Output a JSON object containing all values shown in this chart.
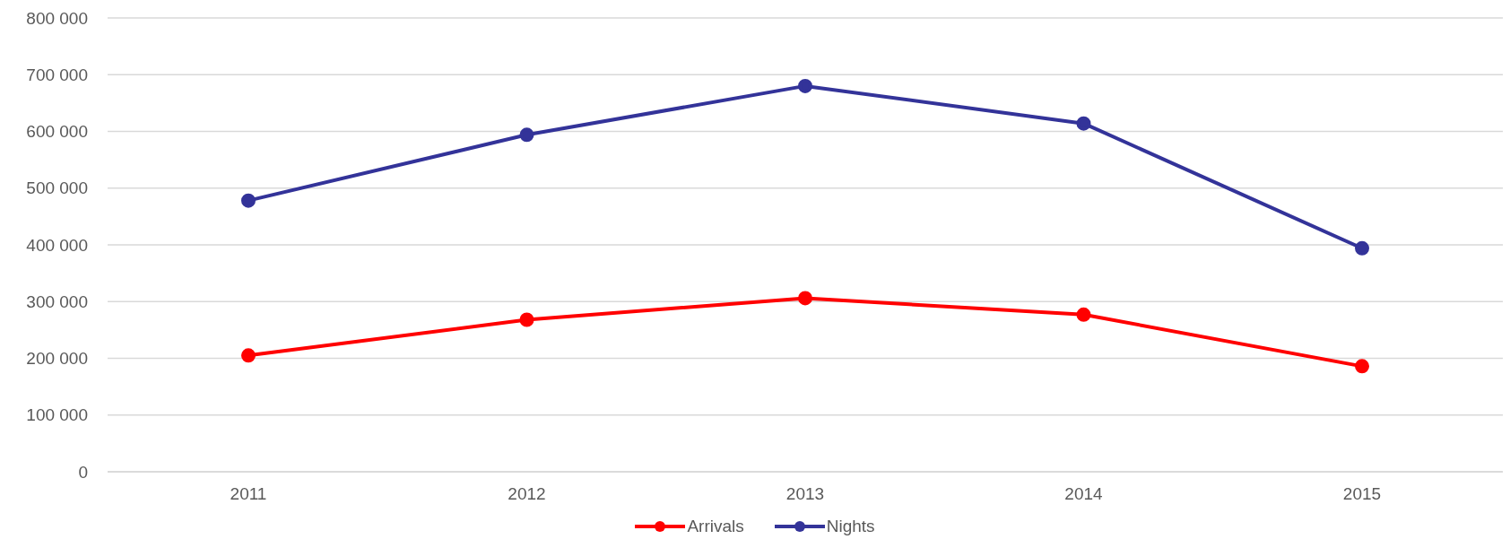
{
  "chart_data": {
    "type": "line",
    "categories": [
      "2011",
      "2012",
      "2013",
      "2014",
      "2015"
    ],
    "series": [
      {
        "name": "Arrivals",
        "color": "#ff0000",
        "values": [
          205000,
          268000,
          306000,
          277000,
          186000
        ]
      },
      {
        "name": "Nights",
        "color": "#333399",
        "values": [
          478000,
          594000,
          680000,
          614000,
          394000
        ]
      }
    ],
    "ylim": [
      0,
      800000
    ],
    "yticks": [
      {
        "value": 0,
        "label": "0"
      },
      {
        "value": 100000,
        "label": "100 000"
      },
      {
        "value": 200000,
        "label": "200 000"
      },
      {
        "value": 300000,
        "label": "300 000"
      },
      {
        "value": 400000,
        "label": "400 000"
      },
      {
        "value": 500000,
        "label": "500 000"
      },
      {
        "value": 600000,
        "label": "600 000"
      },
      {
        "value": 700000,
        "label": "700 000"
      },
      {
        "value": 800000,
        "label": "800 000"
      }
    ],
    "grid": "y",
    "legend": "bottom",
    "marker": "circle",
    "line_style": "solid"
  }
}
